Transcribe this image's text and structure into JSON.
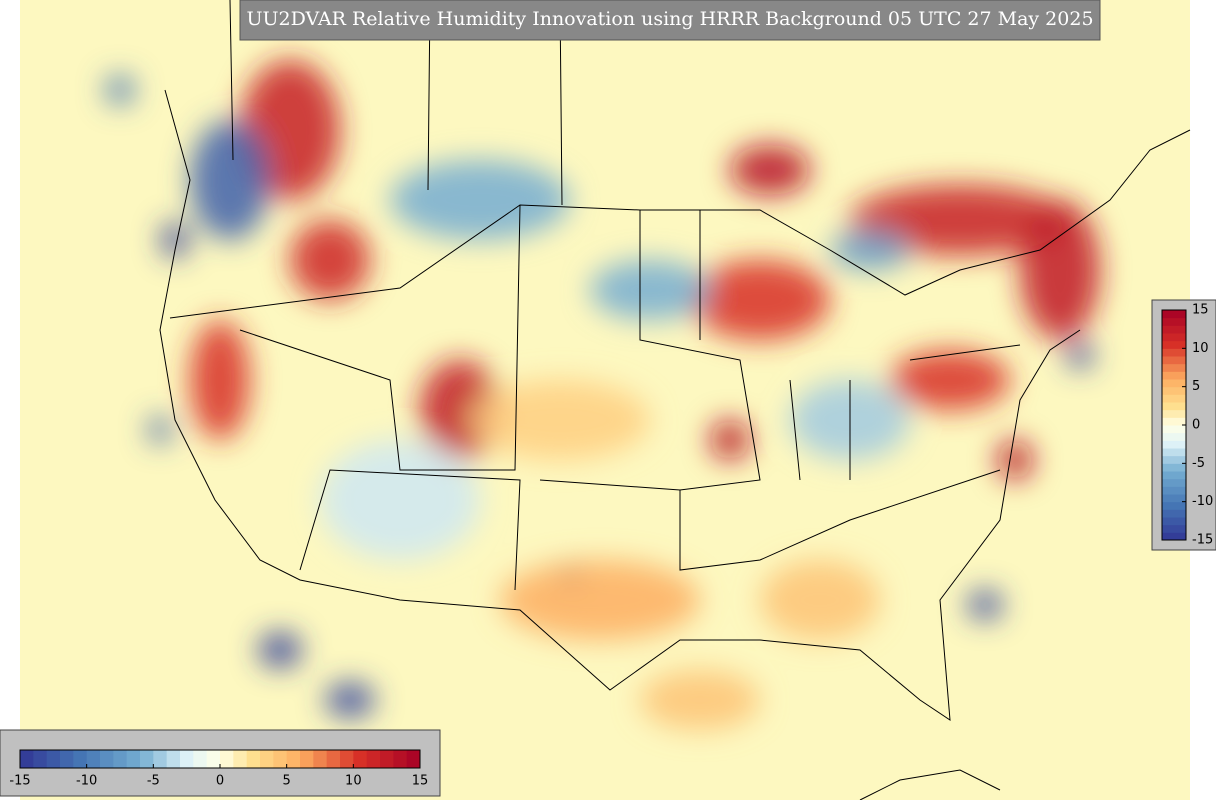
{
  "title": "UU2DVAR Relative Humidity Innovation using HRRR Background 05 UTC 27 May 2025",
  "colorbar_bottom": {
    "lim": [
      -15,
      15
    ],
    "ticks": [
      -15,
      -10,
      -5,
      0,
      5,
      10,
      15
    ]
  },
  "colorbar_right": {
    "lim": [
      -15,
      15
    ],
    "ticks": [
      15,
      10,
      5,
      0,
      -5,
      -10,
      -15
    ]
  }
}
